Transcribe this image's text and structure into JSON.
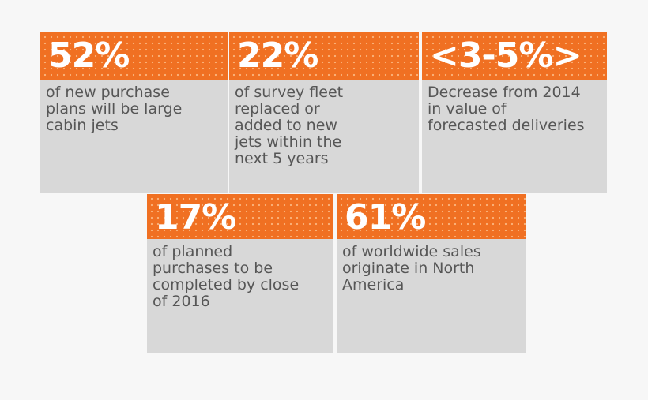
{
  "colors": {
    "accent": "#f07022",
    "panel": "#d8d8d8",
    "text": "#565656"
  },
  "stats": [
    {
      "value": "52%",
      "description": "of new purchase plans will be large cabin jets"
    },
    {
      "value": "22%",
      "description": "of survey fleet replaced or added to new jets within the next 5 years"
    },
    {
      "value": "<3-5%>",
      "description": "Decrease from 2014 in value of forecasted deliveries"
    },
    {
      "value": "17%",
      "description": "of planned purchases to be completed by close of 2016"
    },
    {
      "value": "61%",
      "description": "of worldwide sales originate in North America"
    }
  ]
}
